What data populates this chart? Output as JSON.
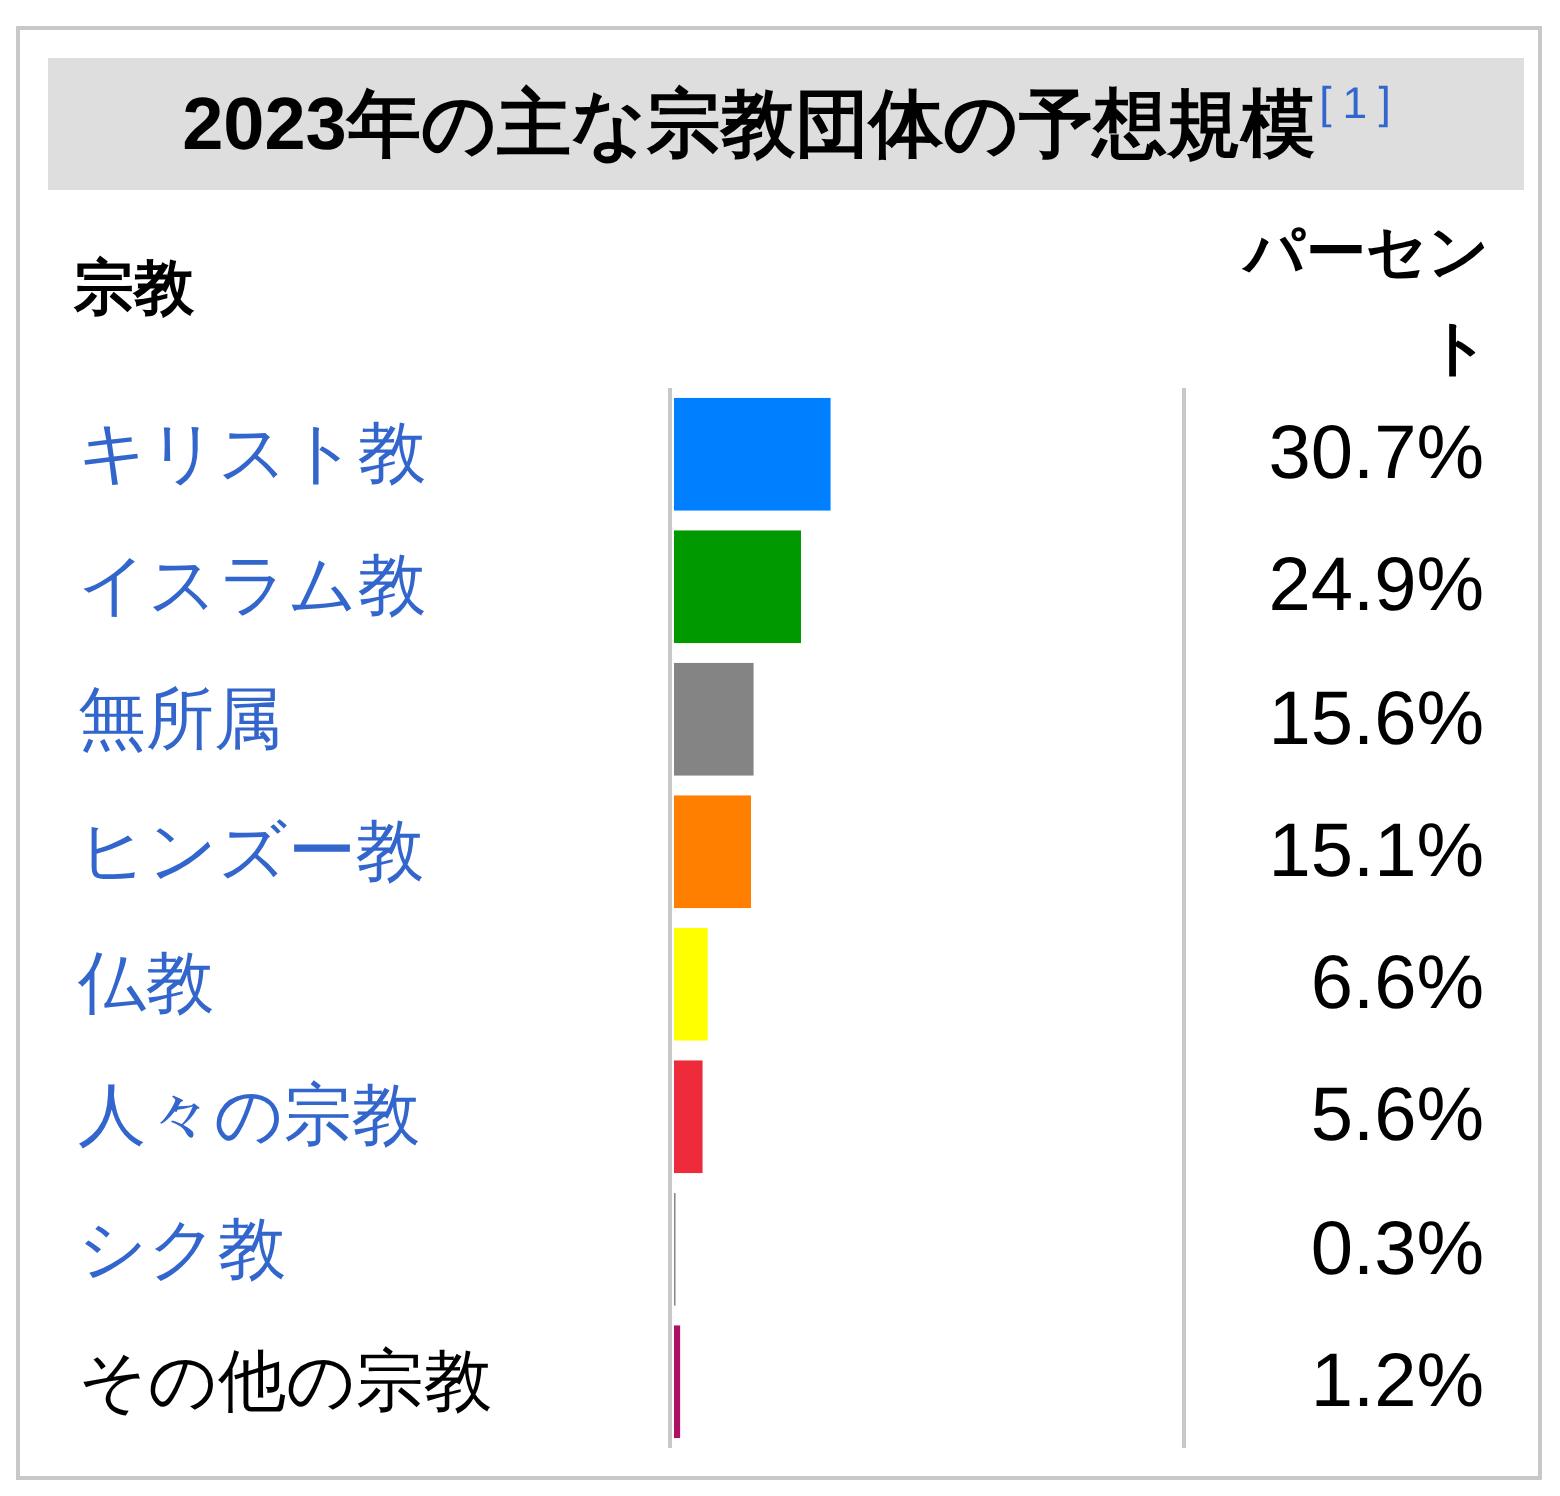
{
  "chart_data": {
    "type": "bar",
    "orientation": "horizontal",
    "title": "2023年の主な宗教団体の予想規模$^{[1]}$",
    "ylabel": "宗教",
    "xlabel": "パーセント",
    "categories": [
      "キリスト教",
      "イスラム教",
      "無所属",
      "ヒンズー教",
      "仏教",
      "人々の宗教",
      "シク教",
      "その他の宗教"
    ],
    "values": [
      30.7,
      24.9,
      15.6,
      15.1,
      6.6,
      5.6,
      0.3,
      1.2
    ],
    "value_labels": [
      "30.7%",
      "24.9%",
      "15.6%",
      "15.1%",
      "6.6%",
      "5.6%",
      "0.3%",
      "1.2%"
    ],
    "colors": [
      "#0080ff",
      "#009900",
      "#848484",
      "#ff8000",
      "#ffff00",
      "#ee2b3b",
      "#888888",
      "#b01064"
    ],
    "xlim": [
      0,
      100
    ]
  }
}
